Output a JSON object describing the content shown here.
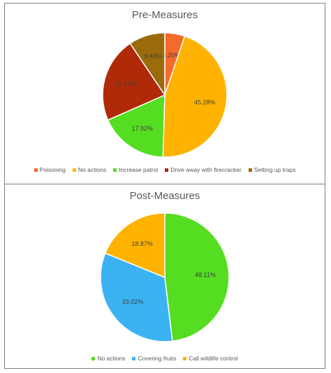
{
  "charts": [
    {
      "title": "Pre-Measures"
    },
    {
      "title": "Post-Measures"
    }
  ],
  "chart_data": [
    {
      "type": "pie",
      "title": "Pre-Measures",
      "categories": [
        "Poisoning",
        "No actions",
        "Increase patrol",
        "Drive away with firecracker",
        "Setting up traps"
      ],
      "values": [
        5.2,
        45.28,
        17.92,
        22.17,
        9.43
      ],
      "labels": [
        "5.20%",
        "45.28%",
        "17.92%",
        "22.17%",
        "9.43%"
      ],
      "colors": [
        "#f46a2b",
        "#ffb300",
        "#55dd22",
        "#b02a07",
        "#9b6a0a"
      ],
      "legend": "bottom"
    },
    {
      "type": "pie",
      "title": "Post-Measures",
      "categories": [
        "No actions",
        "Covering fruits",
        "Call wildlife control"
      ],
      "values": [
        48.11,
        33.02,
        18.87
      ],
      "labels": [
        "48.11%",
        "33.02%",
        "18.87%"
      ],
      "colors": [
        "#55dd22",
        "#3bb3f3",
        "#ffb300"
      ],
      "legend": "bottom"
    }
  ]
}
